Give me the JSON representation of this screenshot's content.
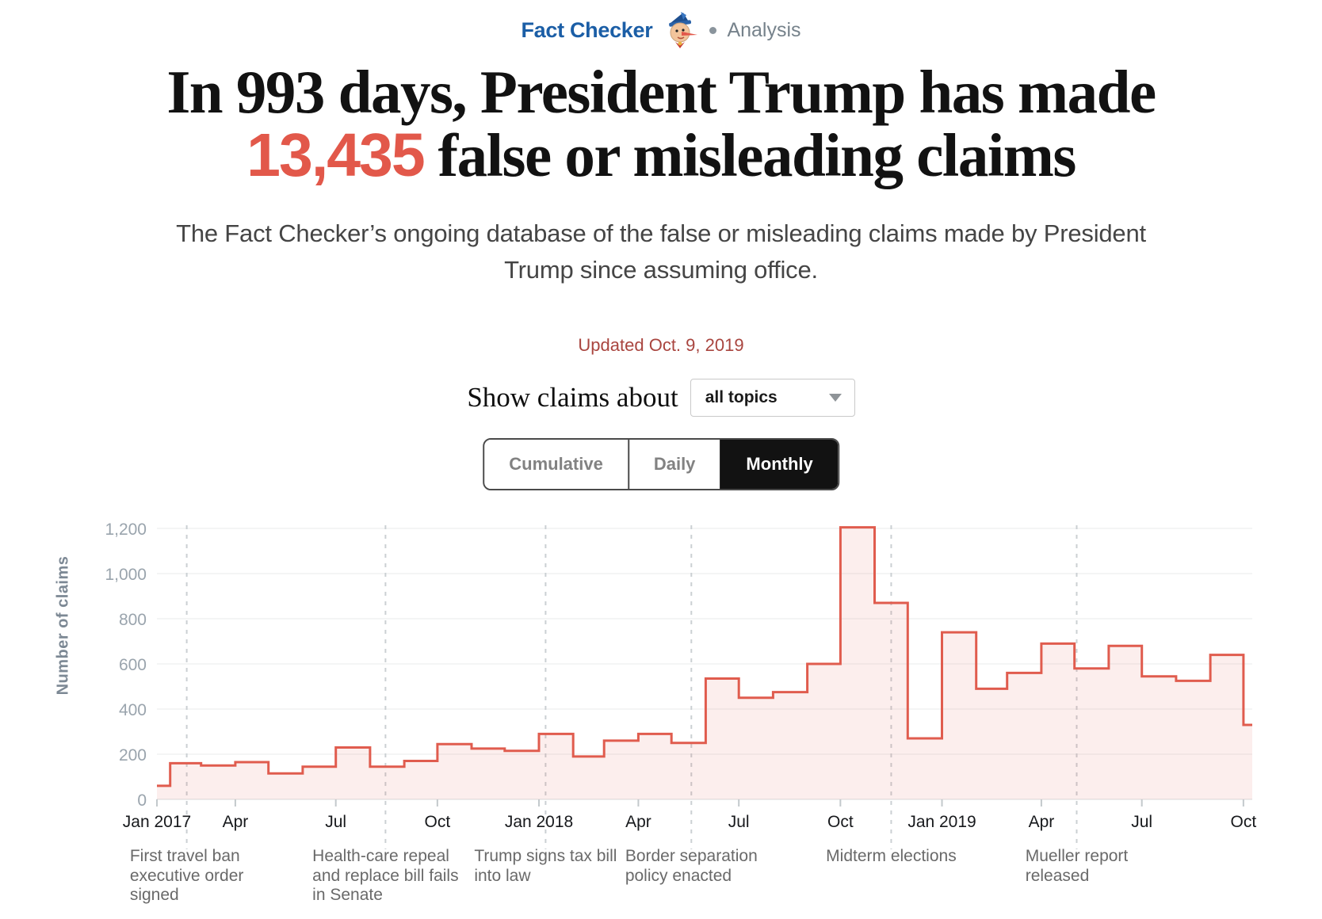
{
  "header": {
    "brand": "Fact Checker",
    "section": "Analysis",
    "brand_color": "#1b5ea6"
  },
  "title": {
    "line1": "In 993 days, President Trump has made",
    "highlight": "13,435",
    "line2_rest": " false or misleading claims",
    "highlight_color": "#e2584a"
  },
  "subtitle": "The Fact Checker’s ongoing database of the false or misleading claims made by President\nTrump since assuming office.",
  "updated": "Updated Oct. 9, 2019",
  "filter": {
    "label": "Show claims about",
    "selected": "all topics"
  },
  "view_toggle": {
    "options": [
      "Cumulative",
      "Daily",
      "Monthly"
    ],
    "selected": "Monthly"
  },
  "chart_data": {
    "type": "area",
    "step": true,
    "title": "",
    "xlabel": "",
    "ylabel": "Number of claims",
    "ylim": [
      0,
      1200
    ],
    "yticks": [
      0,
      200,
      400,
      600,
      800,
      1000,
      1200
    ],
    "grid": true,
    "line_color": "#e05c4e",
    "fill_color": "rgba(224,92,78,0.10)",
    "months": [
      "Jan 2017",
      "Feb 2017",
      "Mar 2017",
      "Apr 2017",
      "May 2017",
      "Jun 2017",
      "Jul 2017",
      "Aug 2017",
      "Sep 2017",
      "Oct 2017",
      "Nov 2017",
      "Dec 2017",
      "Jan 2018",
      "Feb 2018",
      "Mar 2018",
      "Apr 2018",
      "May 2018",
      "Jun 2018",
      "Jul 2018",
      "Aug 2018",
      "Sep 2018",
      "Oct 2018",
      "Nov 2018",
      "Dec 2018",
      "Jan 2019",
      "Feb 2019",
      "Mar 2019",
      "Apr 2019",
      "May 2019",
      "Jun 2019",
      "Jul 2019",
      "Aug 2019",
      "Sep 2019",
      "Oct 2019"
    ],
    "values": [
      60,
      160,
      150,
      165,
      115,
      145,
      230,
      145,
      170,
      245,
      225,
      215,
      290,
      190,
      260,
      290,
      250,
      535,
      450,
      475,
      600,
      1205,
      870,
      270,
      740,
      490,
      560,
      690,
      580,
      680,
      545,
      525,
      640,
      330
    ],
    "xtick_labels": [
      {
        "label": "Jan 2017",
        "month_index": 0
      },
      {
        "label": "Apr",
        "month_index": 3
      },
      {
        "label": "Jul",
        "month_index": 6
      },
      {
        "label": "Oct",
        "month_index": 9
      },
      {
        "label": "Jan 2018",
        "month_index": 12
      },
      {
        "label": "Apr",
        "month_index": 15
      },
      {
        "label": "Jul",
        "month_index": 18
      },
      {
        "label": "Oct",
        "month_index": 21
      },
      {
        "label": "Jan 2019",
        "month_index": 24
      },
      {
        "label": "Apr",
        "month_index": 27
      },
      {
        "label": "Jul",
        "month_index": 30
      },
      {
        "label": "Oct",
        "month_index": 33
      }
    ],
    "events": [
      {
        "label": "First travel ban\nexecutive order\nsigned",
        "day": 27
      },
      {
        "label": "Health-care repeal\nand replace bill fails\nin Senate",
        "day": 207
      },
      {
        "label": "Trump signs tax bill\ninto law",
        "day": 352
      },
      {
        "label": "Border separation\npolicy enacted",
        "day": 484
      },
      {
        "label": "Midterm elections",
        "day": 665
      },
      {
        "label": "Mueller report\nreleased",
        "day": 833
      }
    ],
    "total_days": 992
  }
}
